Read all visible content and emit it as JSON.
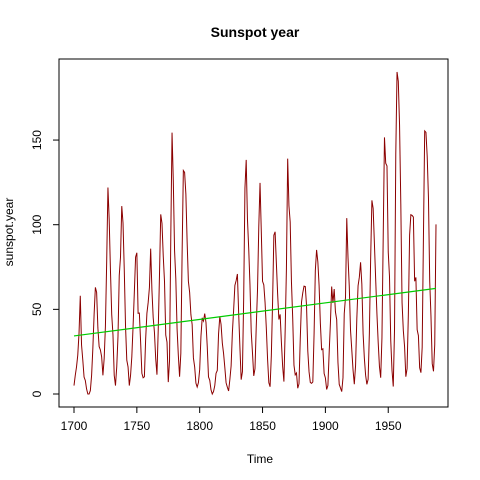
{
  "chart_data": {
    "type": "line",
    "title": "Sunspot year",
    "xlabel": "Time",
    "ylabel": "sunspot.year",
    "xlim": [
      1700,
      1988
    ],
    "ylim": [
      0,
      190.2
    ],
    "x_ticks": [
      1700,
      1750,
      1800,
      1850,
      1900,
      1950
    ],
    "y_ticks": [
      0,
      50,
      100,
      150
    ],
    "grid": false,
    "colors": {
      "series": "#8b0000",
      "trend": "#00cc00"
    },
    "series": [
      {
        "x": [
          1700,
          1701,
          1702,
          1703,
          1704,
          1705,
          1706,
          1707,
          1708,
          1709,
          1710,
          1711,
          1712,
          1713,
          1714,
          1715,
          1716,
          1717,
          1718,
          1719,
          1720,
          1721,
          1722,
          1723,
          1724,
          1725,
          1726,
          1727,
          1728,
          1729,
          1730,
          1731,
          1732,
          1733,
          1734,
          1735,
          1736,
          1737,
          1738,
          1739,
          1740,
          1741,
          1742,
          1743,
          1744,
          1745,
          1746,
          1747,
          1748,
          1749,
          1750,
          1751,
          1752,
          1753,
          1754,
          1755,
          1756,
          1757,
          1758,
          1759,
          1760,
          1761,
          1762,
          1763,
          1764,
          1765,
          1766,
          1767,
          1768,
          1769,
          1770,
          1771,
          1772,
          1773,
          1774,
          1775,
          1776,
          1777,
          1778,
          1779,
          1780,
          1781,
          1782,
          1783,
          1784,
          1785,
          1786,
          1787,
          1788,
          1789,
          1790,
          1791,
          1792,
          1793,
          1794,
          1795,
          1796,
          1797,
          1798,
          1799,
          1800,
          1801,
          1802,
          1803,
          1804,
          1805,
          1806,
          1807,
          1808,
          1809,
          1810,
          1811,
          1812,
          1813,
          1814,
          1815,
          1816,
          1817,
          1818,
          1819,
          1820,
          1821,
          1822,
          1823,
          1824,
          1825,
          1826,
          1827,
          1828,
          1829,
          1830,
          1831,
          1832,
          1833,
          1834,
          1835,
          1836,
          1837,
          1838,
          1839,
          1840,
          1841,
          1842,
          1843,
          1844,
          1845,
          1846,
          1847,
          1848,
          1849,
          1850,
          1851,
          1852,
          1853,
          1854,
          1855,
          1856,
          1857,
          1858,
          1859,
          1860,
          1861,
          1862,
          1863,
          1864,
          1865,
          1866,
          1867,
          1868,
          1869,
          1870,
          1871,
          1872,
          1873,
          1874,
          1875,
          1876,
          1877,
          1878,
          1879,
          1880,
          1881,
          1882,
          1883,
          1884,
          1885,
          1886,
          1887,
          1888,
          1889,
          1890,
          1891,
          1892,
          1893,
          1894,
          1895,
          1896,
          1897,
          1898,
          1899,
          1900,
          1901,
          1902,
          1903,
          1904,
          1905,
          1906,
          1907,
          1908,
          1909,
          1910,
          1911,
          1912,
          1913,
          1914,
          1915,
          1916,
          1917,
          1918,
          1919,
          1920,
          1921,
          1922,
          1923,
          1924,
          1925,
          1926,
          1927,
          1928,
          1929,
          1930,
          1931,
          1932,
          1933,
          1934,
          1935,
          1936,
          1937,
          1938,
          1939,
          1940,
          1941,
          1942,
          1943,
          1944,
          1945,
          1946,
          1947,
          1948,
          1949,
          1950,
          1951,
          1952,
          1953,
          1954,
          1955,
          1956,
          1957,
          1958,
          1959,
          1960,
          1961,
          1962,
          1963,
          1964,
          1965,
          1966,
          1967,
          1968,
          1969,
          1970,
          1971,
          1972,
          1973,
          1974,
          1975,
          1976,
          1977,
          1978,
          1979,
          1980,
          1981,
          1982,
          1983,
          1984,
          1985,
          1986,
          1987,
          1988
        ],
        "values": [
          5,
          11,
          16,
          23,
          36,
          58,
          29,
          20,
          10,
          8,
          3,
          0,
          0,
          2,
          11,
          27,
          47,
          63,
          60,
          39,
          28,
          26,
          22,
          11,
          21,
          40,
          78,
          122,
          103,
          73,
          47,
          35,
          11,
          5,
          16,
          34,
          70,
          81,
          111,
          101,
          73,
          40,
          20,
          16,
          5,
          11,
          22,
          40,
          60,
          80.9,
          83.4,
          47.7,
          47.8,
          30.7,
          12.2,
          9.6,
          10.2,
          32.4,
          47.6,
          54,
          62.9,
          85.9,
          61.2,
          45.1,
          36.4,
          20.9,
          11.4,
          37.8,
          69.8,
          106.1,
          100.8,
          81.6,
          66.5,
          34.8,
          30.6,
          7,
          19.8,
          92.5,
          154.4,
          125.9,
          84.8,
          68.1,
          38.5,
          22.8,
          10.2,
          24.1,
          82.9,
          132,
          130.9,
          118.1,
          89.9,
          66.6,
          60,
          46.9,
          41,
          21.3,
          16,
          6.4,
          4.1,
          6.8,
          14.5,
          34,
          45,
          43.1,
          47.5,
          42.2,
          28.1,
          10.1,
          8.1,
          2.5,
          0,
          1.4,
          5,
          12.2,
          13.9,
          35.4,
          45.8,
          41.1,
          30.1,
          23.9,
          15.6,
          6.6,
          4,
          1.8,
          8.5,
          16.6,
          36.3,
          49.6,
          64.2,
          67,
          70.9,
          47.8,
          27.5,
          8.5,
          13.2,
          56.9,
          121.5,
          138.3,
          103.2,
          85.7,
          64.6,
          36.7,
          24.2,
          10.7,
          15,
          40.1,
          61.5,
          98.5,
          124.7,
          96.3,
          66.6,
          64.5,
          54.1,
          39,
          20.6,
          6.7,
          4.3,
          22.7,
          54.8,
          93.8,
          95.8,
          77.2,
          59.1,
          44,
          47,
          30.5,
          16.3,
          7.3,
          37.6,
          74,
          139,
          111.2,
          101.6,
          66.2,
          44.7,
          17,
          11.3,
          12.4,
          3.4,
          6,
          32.3,
          54.3,
          59.7,
          63.7,
          63.5,
          52.2,
          25.4,
          13.1,
          6.8,
          6.3,
          7.1,
          35.6,
          73,
          85.1,
          78,
          64,
          41.8,
          26.2,
          26.7,
          12.1,
          9.5,
          2.7,
          5,
          24.4,
          42,
          63.5,
          53.8,
          62,
          48.5,
          43.9,
          18.6,
          5.7,
          3.6,
          1.4,
          9.6,
          47.4,
          57.1,
          103.9,
          80.6,
          63.6,
          37.6,
          26.1,
          14.2,
          5.8,
          16.7,
          44.3,
          63.9,
          69,
          77.8,
          64.9,
          35.7,
          21.2,
          11.1,
          5.7,
          8.7,
          36.1,
          79.7,
          114.4,
          109.6,
          88.8,
          67.8,
          47.5,
          30.6,
          16.3,
          9.6,
          33.2,
          92.6,
          151.6,
          136.3,
          134.7,
          83.9,
          69.4,
          31.5,
          13.9,
          4.4,
          38,
          141.7,
          190.2,
          184.8,
          159,
          112.3,
          53.9,
          37.5,
          27.9,
          10.2,
          15.1,
          47,
          93.8,
          105.9,
          105.5,
          104.5,
          66.6,
          68.9,
          38,
          34.5,
          15.5,
          12.6,
          27.5,
          92.5,
          155.4,
          154.6,
          140.4,
          115.9,
          66.6,
          45.9,
          17.9,
          13.4,
          29.2,
          100.2
        ]
      }
    ],
    "trend": {
      "x": [
        1700,
        1988
      ],
      "y": [
        34.3,
        62.4
      ]
    }
  }
}
